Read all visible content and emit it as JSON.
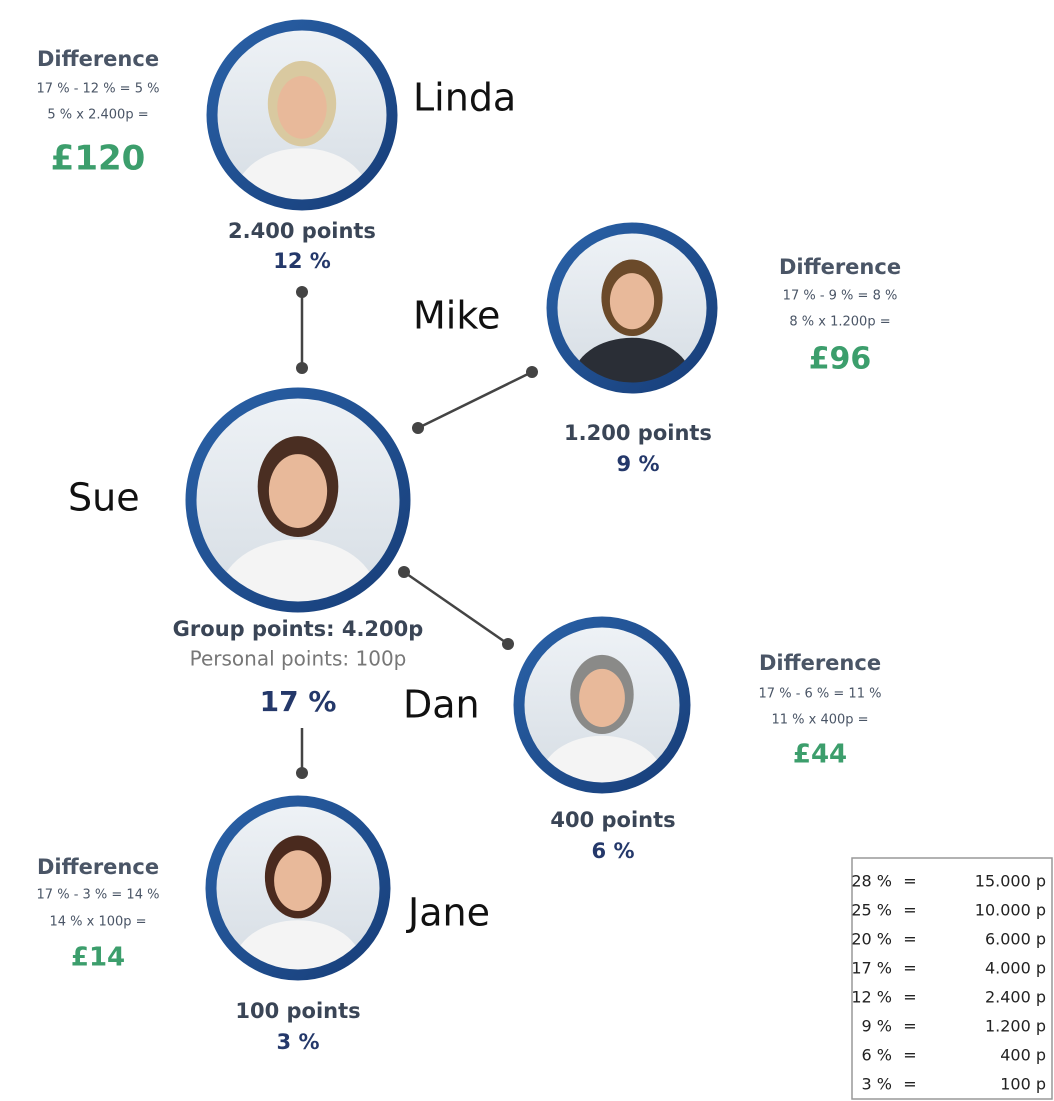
{
  "center": {
    "name": "Sue",
    "group_points": "Group points: 4.200p",
    "personal_points": "Personal points: 100p",
    "rate": "17 %"
  },
  "nodes": [
    {
      "name": "Linda",
      "points": "2.400 points",
      "rate": "12 %",
      "difference": {
        "title": "Difference",
        "lines": [
          "17 % - 12 % = 5 %",
          "5 % x 2.400p ="
        ],
        "amount": "£120"
      }
    },
    {
      "name": "Mike",
      "points": "1.200 points",
      "rate": "9 %",
      "difference": {
        "title": "Difference",
        "lines": [
          "17 % - 9 % = 8 %",
          "8 % x 1.200p ="
        ],
        "amount": "£96"
      }
    },
    {
      "name": "Dan",
      "points": "400 points",
      "rate": "6 %",
      "difference": {
        "title": "Difference",
        "lines": [
          "17 % - 6 % = 11 %",
          "11 % x 400p ="
        ],
        "amount": "£44"
      }
    },
    {
      "name": "Jane",
      "points": "100 points",
      "rate": "3 %",
      "difference": {
        "title": "Difference",
        "lines": [
          "17 % - 3 % = 14 %",
          "14 % x 100p ="
        ],
        "amount": "£14"
      }
    }
  ],
  "rate_table": {
    "rows": [
      [
        "28 %",
        "=",
        "15.000 p"
      ],
      [
        "25 %",
        "=",
        "10.000 p"
      ],
      [
        "20 %",
        "=",
        "6.000 p"
      ],
      [
        "17 %",
        "=",
        "4.000 p"
      ],
      [
        "12 %",
        "=",
        "2.400 p"
      ],
      [
        "9 %",
        "=",
        "1.200 p"
      ],
      [
        "6 %",
        "=",
        "400 p"
      ],
      [
        "3 %",
        "=",
        "100 p"
      ]
    ]
  }
}
